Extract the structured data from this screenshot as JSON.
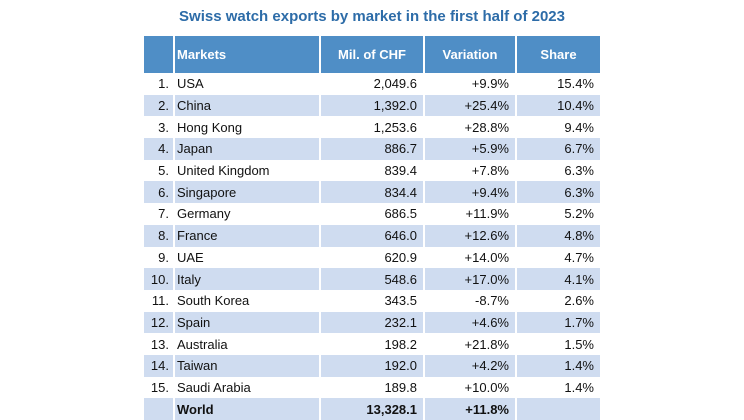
{
  "chart_data": {
    "type": "table",
    "title": "Swiss watch exports by market in the first half of 2023",
    "columns": [
      "Markets",
      "Mil. of CHF",
      "Variation",
      "Share"
    ],
    "rows": [
      {
        "rank": "1.",
        "market": "USA",
        "mil_chf": "2,049.6",
        "variation": "+9.9%",
        "share": "15.4%"
      },
      {
        "rank": "2.",
        "market": "China",
        "mil_chf": "1,392.0",
        "variation": "+25.4%",
        "share": "10.4%"
      },
      {
        "rank": "3.",
        "market": "Hong Kong",
        "mil_chf": "1,253.6",
        "variation": "+28.8%",
        "share": "9.4%"
      },
      {
        "rank": "4.",
        "market": "Japan",
        "mil_chf": "886.7",
        "variation": "+5.9%",
        "share": "6.7%"
      },
      {
        "rank": "5.",
        "market": "United Kingdom",
        "mil_chf": "839.4",
        "variation": "+7.8%",
        "share": "6.3%"
      },
      {
        "rank": "6.",
        "market": "Singapore",
        "mil_chf": "834.4",
        "variation": "+9.4%",
        "share": "6.3%"
      },
      {
        "rank": "7.",
        "market": "Germany",
        "mil_chf": "686.5",
        "variation": "+11.9%",
        "share": "5.2%"
      },
      {
        "rank": "8.",
        "market": "France",
        "mil_chf": "646.0",
        "variation": "+12.6%",
        "share": "4.8%"
      },
      {
        "rank": "9.",
        "market": "UAE",
        "mil_chf": "620.9",
        "variation": "+14.0%",
        "share": "4.7%"
      },
      {
        "rank": "10.",
        "market": "Italy",
        "mil_chf": "548.6",
        "variation": "+17.0%",
        "share": "4.1%"
      },
      {
        "rank": "11.",
        "market": "South Korea",
        "mil_chf": "343.5",
        "variation": "-8.7%",
        "share": "2.6%"
      },
      {
        "rank": "12.",
        "market": "Spain",
        "mil_chf": "232.1",
        "variation": "+4.6%",
        "share": "1.7%"
      },
      {
        "rank": "13.",
        "market": "Australia",
        "mil_chf": "198.2",
        "variation": "+21.8%",
        "share": "1.5%"
      },
      {
        "rank": "14.",
        "market": "Taiwan",
        "mil_chf": "192.0",
        "variation": "+4.2%",
        "share": "1.4%"
      },
      {
        "rank": "15.",
        "market": "Saudi Arabia",
        "mil_chf": "189.8",
        "variation": "+10.0%",
        "share": "1.4%"
      }
    ],
    "total": {
      "market": "World",
      "mil_chf": "13,328.1",
      "variation": "+11.8%",
      "share": ""
    }
  },
  "colors": {
    "title": "#2d6ca8",
    "header_bg": "#4f8ec6",
    "stripe_bg": "#cfdcf0"
  }
}
